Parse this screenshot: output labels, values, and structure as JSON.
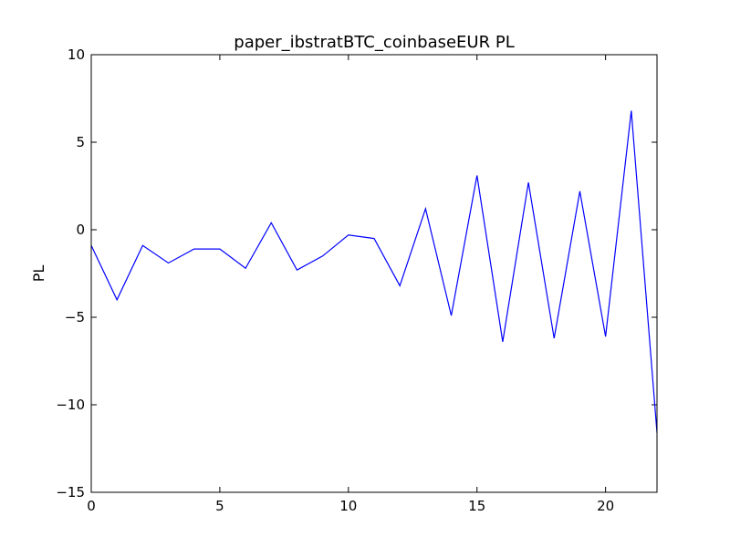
{
  "chart_data": {
    "type": "line",
    "title": "paper_ibstratBTC_coinbaseEUR PL",
    "xlabel": "",
    "ylabel": "PL",
    "xlim": [
      0,
      22
    ],
    "ylim": [
      -15,
      10
    ],
    "xticks": [
      0,
      5,
      10,
      15,
      20
    ],
    "xtick_labels": [
      "0",
      "5",
      "10",
      "15",
      "20"
    ],
    "yticks": [
      -15,
      -10,
      -5,
      0,
      5,
      10
    ],
    "ytick_labels": [
      "−15",
      "−10",
      "−5",
      "0",
      "5",
      "10"
    ],
    "grid": false,
    "series": [
      {
        "color": "#0000ff",
        "x": [
          0,
          1,
          2,
          3,
          4,
          5,
          6,
          7,
          8,
          9,
          10,
          11,
          12,
          13,
          14,
          15,
          16,
          17,
          18,
          19,
          20,
          21,
          22
        ],
        "values": [
          -0.9,
          -4.0,
          -0.9,
          -1.9,
          -1.1,
          -1.1,
          -2.2,
          0.4,
          -2.3,
          -1.5,
          -0.3,
          -0.5,
          -3.2,
          1.2,
          -4.9,
          3.1,
          -6.4,
          2.7,
          -6.2,
          2.2,
          -6.1,
          6.8,
          -11.6
        ]
      }
    ]
  }
}
